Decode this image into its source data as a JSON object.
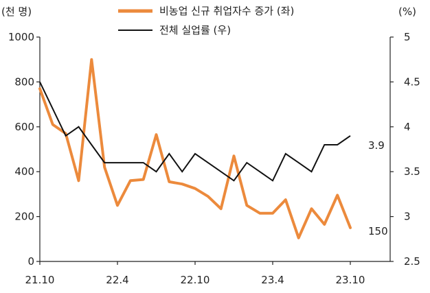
{
  "chart_data": {
    "type": "line",
    "y_left_unit": "(천 명)",
    "y_right_unit": "(%)",
    "y_left_lim": [
      0,
      1000
    ],
    "y_left_ticks": [
      "0",
      "200",
      "400",
      "600",
      "800",
      "1000"
    ],
    "y_right_lim": [
      2.5,
      5
    ],
    "y_right_ticks": [
      "2.5",
      "3",
      "3.5",
      "4",
      "4.5",
      "5"
    ],
    "x_tick_labels": [
      "21.10",
      "22.4",
      "22.10",
      "23.4",
      "23.10"
    ],
    "x_tick_index": [
      0,
      6,
      12,
      18,
      24
    ],
    "grid": false,
    "legend_placement": "top",
    "series": [
      {
        "name": "비농업 신규 취업자수 증가 (좌)",
        "axis": "left",
        "color": "#ec8a3c",
        "values": [
          770,
          610,
          570,
          360,
          900,
          420,
          250,
          360,
          365,
          565,
          355,
          345,
          325,
          290,
          235,
          470,
          250,
          215,
          215,
          275,
          105,
          235,
          165,
          295,
          150
        ],
        "end_label": "150"
      },
      {
        "name": "전체 실업률 (우)",
        "axis": "right",
        "color": "#111111",
        "values": [
          4.5,
          4.2,
          3.9,
          4.0,
          3.8,
          3.6,
          3.6,
          3.6,
          3.6,
          3.5,
          3.7,
          3.5,
          3.7,
          3.6,
          3.5,
          3.4,
          3.6,
          3.5,
          3.4,
          3.7,
          3.6,
          3.5,
          3.8,
          3.8,
          3.9
        ],
        "end_label": "3.9"
      }
    ]
  }
}
